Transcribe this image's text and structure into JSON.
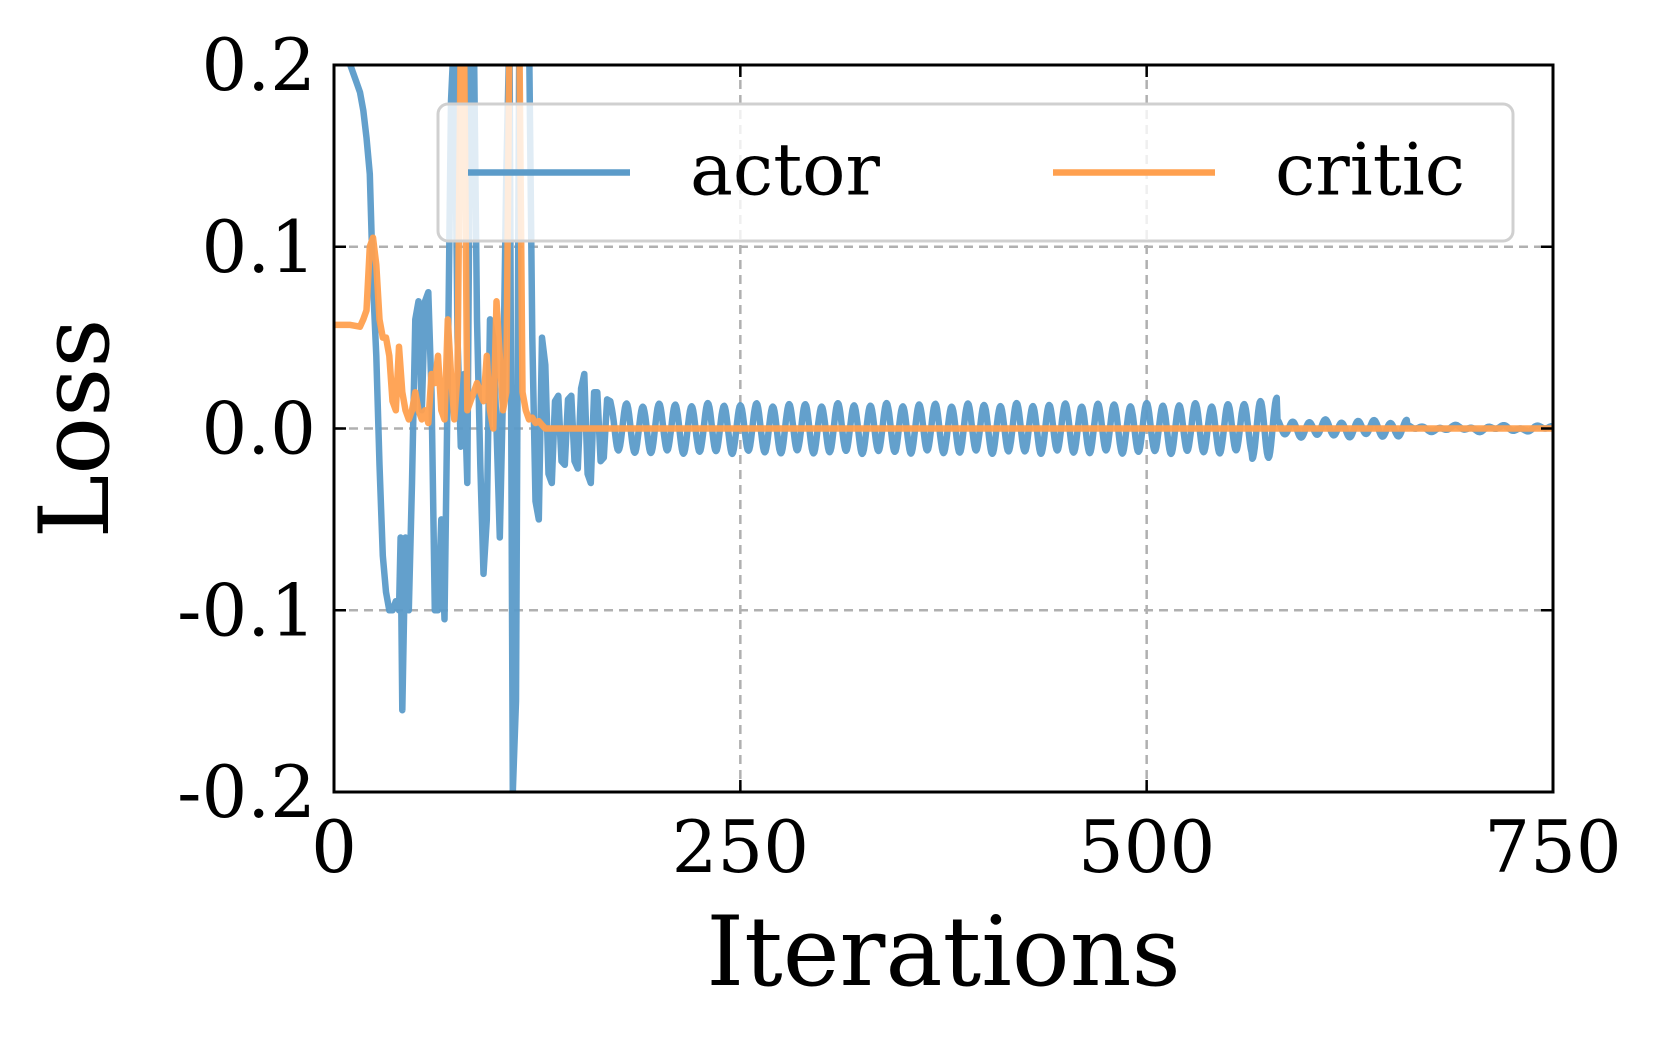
{
  "chart_data": {
    "type": "line",
    "title": "",
    "xlabel": "Iterations",
    "ylabel": "Loss",
    "xlim": [
      0,
      750
    ],
    "ylim": [
      -0.2,
      0.2
    ],
    "x_ticks": [
      0,
      250,
      500,
      750
    ],
    "x_tick_labels": [
      "0",
      "250",
      "500",
      "750"
    ],
    "y_ticks": [
      0.2,
      0.1,
      0.0,
      -0.1,
      -0.2
    ],
    "y_tick_labels": [
      "0.2",
      "0.1",
      "0.0",
      "-0.1",
      "-0.2"
    ],
    "grid": true,
    "ticks_direction": "in",
    "legend": {
      "placement": "top-right",
      "columns": 2
    },
    "series": [
      {
        "name": "actor",
        "color": "#5b9bc9",
        "x": [
          10,
          14,
          16,
          18,
          20,
          22,
          24,
          26,
          28,
          30,
          32,
          34,
          36,
          38,
          40,
          41,
          42,
          44,
          46,
          48,
          50,
          52,
          54,
          56,
          58,
          60,
          62,
          64,
          66,
          68,
          70,
          72,
          74,
          76,
          78,
          80,
          82,
          84,
          86,
          88,
          90,
          92,
          94,
          96,
          98,
          100,
          102,
          104,
          106,
          108,
          110,
          112,
          114,
          116,
          118,
          120,
          122,
          124,
          126,
          128,
          130,
          132,
          134,
          136,
          138,
          140,
          142,
          144,
          146,
          148,
          150,
          152,
          154,
          156,
          158,
          160,
          162,
          164,
          166,
          168,
          170
        ],
        "y": [
          0.2,
          0.19,
          0.185,
          0.175,
          0.16,
          0.14,
          0.08,
          0.04,
          -0.02,
          -0.07,
          -0.09,
          -0.1,
          -0.1,
          -0.095,
          -0.1,
          -0.06,
          -0.155,
          -0.06,
          -0.1,
          -0.03,
          0.06,
          0.07,
          0.01,
          0.07,
          0.075,
          0.02,
          -0.1,
          -0.1,
          -0.05,
          -0.105,
          0.03,
          0.18,
          0.22,
          0.05,
          -0.01,
          0.03,
          -0.03,
          0.22,
          0.22,
          0.06,
          -0.02,
          -0.08,
          -0.05,
          0.06,
          0.05,
          0.0,
          -0.06,
          0.02,
          0.14,
          0.22,
          -0.2,
          -0.15,
          0.22,
          0.22,
          0.22,
          0.22,
          0.05,
          -0.04,
          -0.05,
          0.05,
          0.035,
          -0.025,
          -0.03,
          0.015,
          0.018,
          -0.018,
          -0.02,
          0.016,
          0.018,
          -0.018,
          -0.022,
          0.022,
          0.03,
          -0.025,
          -0.03,
          0.02,
          0.02,
          -0.018,
          -0.016,
          0.016,
          0.015
        ],
        "oscillation": [
          {
            "x": [
              170,
              580
            ],
            "amplitude": 0.013,
            "note": "dense periodic oscillation around 0"
          },
          {
            "x": [
              565,
              580
            ],
            "amplitude": 0.016
          },
          {
            "x": [
              580,
              660
            ],
            "amplitude": 0.004
          },
          {
            "x": [
              660,
              750
            ],
            "amplitude": 0.001
          }
        ]
      },
      {
        "name": "critic",
        "color": "#ffa04f",
        "x": [
          0,
          10,
          16,
          18,
          20,
          22,
          24,
          26,
          28,
          30,
          32,
          34,
          36,
          38,
          40,
          42,
          44,
          46,
          48,
          50,
          52,
          54,
          56,
          58,
          60,
          62,
          64,
          66,
          68,
          70,
          72,
          74,
          76,
          78,
          80,
          82,
          84,
          86,
          88,
          90,
          92,
          94,
          96,
          98,
          100,
          102,
          104,
          106,
          108,
          110,
          112,
          114,
          116,
          118,
          120,
          122,
          124,
          126,
          128,
          130,
          132,
          134,
          136,
          138,
          140,
          142,
          144,
          146,
          148,
          150,
          155,
          160,
          165,
          170,
          180,
          250,
          750
        ],
        "y": [
          0.057,
          0.057,
          0.056,
          0.06,
          0.065,
          0.1,
          0.105,
          0.09,
          0.06,
          0.05,
          0.05,
          0.04,
          0.015,
          0.01,
          0.045,
          0.02,
          0.01,
          0.005,
          0.01,
          0.02,
          0.01,
          0.005,
          0.01,
          0.003,
          0.03,
          0.025,
          0.04,
          0.01,
          0.005,
          0.06,
          0.03,
          0.005,
          0.03,
          0.22,
          0.22,
          0.01,
          0.015,
          0.02,
          0.025,
          0.02,
          0.015,
          0.04,
          0.01,
          0.0,
          0.07,
          0.04,
          0.01,
          0.02,
          0.22,
          0.22,
          0.22,
          0.22,
          0.02,
          0.01,
          0.005,
          0.006,
          0.003,
          0.004,
          0.002,
          0.0,
          0.0,
          0.0,
          0.0,
          0.0,
          0.0,
          0.0,
          0.0,
          0.0,
          0.0,
          0.0,
          0.0,
          0.0,
          0.0,
          0.0,
          0.0,
          0.0,
          0.0
        ]
      }
    ]
  }
}
